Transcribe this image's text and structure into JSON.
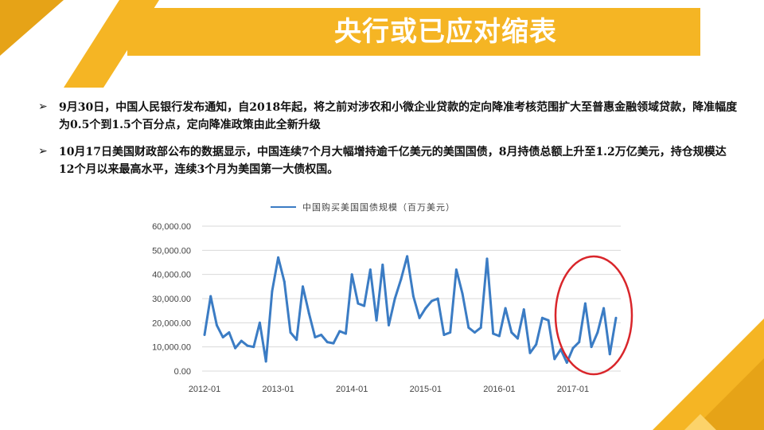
{
  "header": {
    "title": "央行或已应对缩表"
  },
  "bullets": [
    {
      "icon": "arrow-bullet-icon",
      "text": "9月30日，中国人民银行发布通知，自2018年起，将之前对涉农和小微企业贷款的定向降准考核范围扩大至普惠金融领域贷款，降准幅度为0.5个到1.5个百分点，定向降准政策由此全新升级"
    },
    {
      "icon": "arrow-bullet-icon",
      "text": "10月17日美国财政部公布的数据显示，中国连续7个月大幅增持逾千亿美元的美国国债，8月持债总额上升至1.2万亿美元，持仓规模达12个月以来最高水平，连续3个月为美国第一大债权国。"
    }
  ],
  "colors": {
    "accent": "#f5b524",
    "accent_dark": "#e6a317",
    "line": "#3b7cc4",
    "highlight_circle": "#d9262b"
  },
  "chart_data": {
    "type": "line",
    "series": [
      {
        "name": "中国购买美国国债规模（百万美元）",
        "values": [
          15000,
          31000,
          19000,
          14000,
          16000,
          9500,
          12500,
          10500,
          10000,
          20000,
          4000,
          33000,
          47000,
          37000,
          16000,
          13000,
          35000,
          24000,
          14000,
          15000,
          12000,
          11500,
          16500,
          15500,
          40000,
          28000,
          27000,
          42000,
          21000,
          44000,
          19000,
          30000,
          38000,
          47500,
          31000,
          22000,
          26000,
          29000,
          30000,
          15000,
          16000,
          42000,
          32000,
          18000,
          16000,
          18000,
          46500,
          15500,
          14500,
          26000,
          16000,
          13500,
          25500,
          7500,
          11000,
          22000,
          21000,
          5000,
          9000,
          3500,
          9500,
          12000,
          28000,
          10000,
          16000,
          26000,
          7000,
          22000
        ]
      }
    ],
    "x_tick_labels": [
      "2012-01",
      "2013-01",
      "2014-01",
      "2015-01",
      "2016-01",
      "2017-01"
    ],
    "y_tick_labels": [
      "0.00",
      "10,000.00",
      "20,000.00",
      "30,000.00",
      "40,000.00",
      "50,000.00",
      "60,000.00"
    ],
    "ylim": [
      0,
      60000
    ],
    "grid": true,
    "legend": "top-center",
    "annotation": "red ellipse highlighting 2017 values"
  }
}
